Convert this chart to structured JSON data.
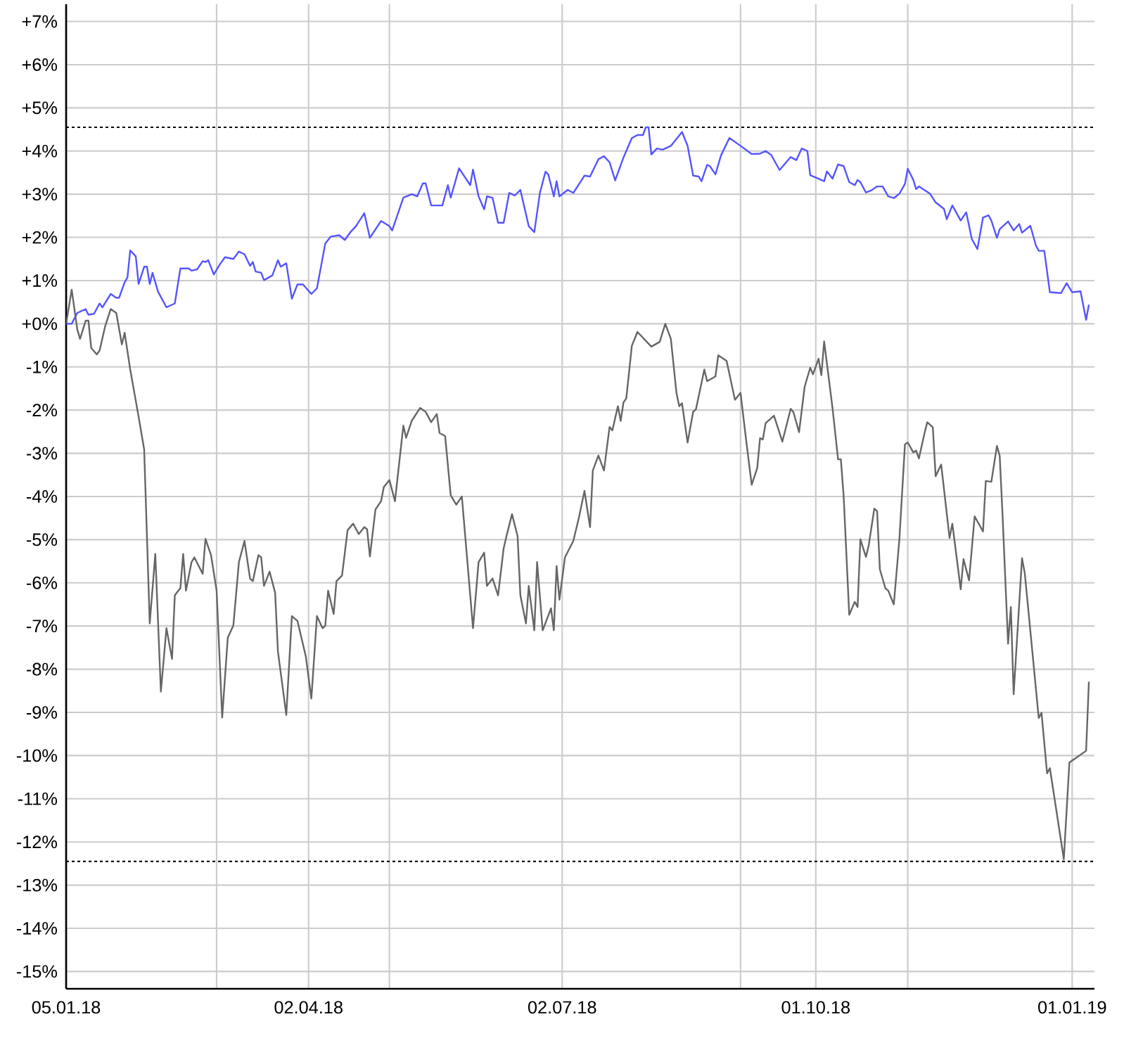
{
  "chart_data": {
    "type": "line",
    "xlim": [
      "2018-01-05",
      "2019-01-09"
    ],
    "xticks": [
      {
        "value": "2018-01-05",
        "label": "05.01.18"
      },
      {
        "value": "2018-02-28",
        "label": null
      },
      {
        "value": "2018-04-02",
        "label": "02.04.18"
      },
      {
        "value": "2018-05-01",
        "label": null
      },
      {
        "value": "2018-07-02",
        "label": "02.07.18"
      },
      {
        "value": "2018-09-04",
        "label": null
      },
      {
        "value": "2018-10-01",
        "label": "01.10.18"
      },
      {
        "value": "2018-11-03",
        "label": null
      },
      {
        "value": "2019-01-01",
        "label": "01.01.19"
      }
    ],
    "ylim": [
      -15.4,
      7.4
    ],
    "yticks": [
      {
        "value": 7,
        "label": "+7%"
      },
      {
        "value": 6,
        "label": "+6%"
      },
      {
        "value": 5,
        "label": "+5%"
      },
      {
        "value": 4,
        "label": "+4%"
      },
      {
        "value": 3,
        "label": "+3%"
      },
      {
        "value": 2,
        "label": "+2%"
      },
      {
        "value": 1,
        "label": "+1%"
      },
      {
        "value": 0,
        "label": "+0%"
      },
      {
        "value": -1,
        "label": "-1%"
      },
      {
        "value": -2,
        "label": "-2%"
      },
      {
        "value": -3,
        "label": "-3%"
      },
      {
        "value": -4,
        "label": "-4%"
      },
      {
        "value": -5,
        "label": "-5%"
      },
      {
        "value": -6,
        "label": "-6%"
      },
      {
        "value": -7,
        "label": "-7%"
      },
      {
        "value": -8,
        "label": "-8%"
      },
      {
        "value": -9,
        "label": "-9%"
      },
      {
        "value": -10,
        "label": "-10%"
      },
      {
        "value": -11,
        "label": "-11%"
      },
      {
        "value": -12,
        "label": "-12%"
      },
      {
        "value": -13,
        "label": "-13%"
      },
      {
        "value": -14,
        "label": "-14%"
      },
      {
        "value": -15,
        "label": "-15%"
      }
    ],
    "grid": true,
    "ref_lines": [
      {
        "axis": "y",
        "value": 4.55,
        "color": "#000000",
        "line_style": "dotted"
      },
      {
        "axis": "y",
        "value": -12.45,
        "color": "#000000",
        "line_style": "dotted"
      }
    ],
    "series": [
      {
        "color": "#5555ff",
        "x": [
          "2018-01-05",
          "2018-01-07",
          "2018-01-09",
          "2018-01-12",
          "2018-01-13",
          "2018-01-15",
          "2018-01-17",
          "2018-01-18",
          "2018-01-21",
          "2018-01-23",
          "2018-01-24",
          "2018-01-26",
          "2018-01-27",
          "2018-01-28",
          "2018-01-30",
          "2018-01-31",
          "2018-02-02",
          "2018-02-03",
          "2018-02-04",
          "2018-02-05",
          "2018-02-07",
          "2018-02-10",
          "2018-02-13",
          "2018-02-15",
          "2018-02-18",
          "2018-02-19",
          "2018-02-21",
          "2018-02-23",
          "2018-02-24",
          "2018-02-25",
          "2018-02-27",
          "2018-03-01",
          "2018-03-03",
          "2018-03-06",
          "2018-03-08",
          "2018-03-10",
          "2018-03-12",
          "2018-03-13",
          "2018-03-14",
          "2018-03-16",
          "2018-03-17",
          "2018-03-20",
          "2018-03-22",
          "2018-03-23",
          "2018-03-25",
          "2018-03-27",
          "2018-03-29",
          "2018-03-31",
          "2018-04-03",
          "2018-04-05",
          "2018-04-08",
          "2018-04-10",
          "2018-04-13",
          "2018-04-15",
          "2018-04-17",
          "2018-04-19",
          "2018-04-22",
          "2018-04-24",
          "2018-04-28",
          "2018-05-01",
          "2018-05-02",
          "2018-05-04",
          "2018-05-06",
          "2018-05-09",
          "2018-05-11",
          "2018-05-13",
          "2018-05-14",
          "2018-05-16",
          "2018-05-19",
          "2018-05-20",
          "2018-05-22",
          "2018-05-23",
          "2018-05-26",
          "2018-05-30",
          "2018-05-31",
          "2018-06-02",
          "2018-06-04",
          "2018-06-05",
          "2018-06-07",
          "2018-06-09",
          "2018-06-11",
          "2018-06-13",
          "2018-06-15",
          "2018-06-17",
          "2018-06-20",
          "2018-06-22",
          "2018-06-24",
          "2018-06-26",
          "2018-06-27",
          "2018-06-29",
          "2018-06-30",
          "2018-07-01",
          "2018-07-04",
          "2018-07-06",
          "2018-07-10",
          "2018-07-12",
          "2018-07-15",
          "2018-07-17",
          "2018-07-19",
          "2018-07-21",
          "2018-07-24",
          "2018-07-27",
          "2018-07-29",
          "2018-07-31",
          "2018-08-01",
          "2018-08-02",
          "2018-08-03",
          "2018-08-05",
          "2018-08-07",
          "2018-08-10",
          "2018-08-14",
          "2018-08-16",
          "2018-08-18",
          "2018-08-20",
          "2018-08-21",
          "2018-08-23",
          "2018-08-24",
          "2018-08-26",
          "2018-08-28",
          "2018-08-31",
          "2018-09-04",
          "2018-09-08",
          "2018-09-11",
          "2018-09-13",
          "2018-09-15",
          "2018-09-18",
          "2018-09-22",
          "2018-09-24",
          "2018-09-26",
          "2018-09-28",
          "2018-09-29",
          "2018-10-02",
          "2018-10-04",
          "2018-10-05",
          "2018-10-07",
          "2018-10-09",
          "2018-10-11",
          "2018-10-13",
          "2018-10-15",
          "2018-10-16",
          "2018-10-17",
          "2018-10-19",
          "2018-10-21",
          "2018-10-23",
          "2018-10-25",
          "2018-10-27",
          "2018-10-29",
          "2018-10-31",
          "2018-11-02",
          "2018-11-03",
          "2018-11-05",
          "2018-11-06",
          "2018-11-07",
          "2018-11-11",
          "2018-11-13",
          "2018-11-16",
          "2018-11-17",
          "2018-11-19",
          "2018-11-22",
          "2018-11-24",
          "2018-11-26",
          "2018-11-28",
          "2018-11-30",
          "2018-12-02",
          "2018-12-03",
          "2018-12-05",
          "2018-12-06",
          "2018-12-09",
          "2018-12-11",
          "2018-12-13",
          "2018-12-14",
          "2018-12-17",
          "2018-12-19",
          "2018-12-20",
          "2018-12-22",
          "2018-12-24",
          "2018-12-28",
          "2018-12-30",
          "2019-01-01",
          "2019-01-04",
          "2019-01-06",
          "2019-01-07"
        ],
        "values": [
          0.0,
          0.0,
          0.25,
          0.34,
          0.21,
          0.23,
          0.47,
          0.38,
          0.69,
          0.6,
          0.6,
          0.96,
          1.07,
          1.7,
          1.56,
          0.92,
          1.32,
          1.32,
          0.92,
          1.18,
          0.74,
          0.38,
          0.47,
          1.28,
          1.28,
          1.23,
          1.26,
          1.45,
          1.43,
          1.47,
          1.14,
          1.36,
          1.54,
          1.5,
          1.67,
          1.61,
          1.34,
          1.43,
          1.21,
          1.18,
          1.01,
          1.12,
          1.47,
          1.32,
          1.4,
          0.58,
          0.91,
          0.91,
          0.69,
          0.82,
          1.86,
          2.02,
          2.05,
          1.94,
          2.12,
          2.26,
          2.56,
          1.99,
          2.38,
          2.26,
          2.16,
          2.54,
          2.92,
          3.0,
          2.95,
          3.25,
          3.25,
          2.74,
          2.74,
          2.74,
          3.21,
          2.92,
          3.6,
          3.21,
          3.57,
          2.95,
          2.65,
          2.95,
          2.92,
          2.34,
          2.34,
          3.03,
          2.97,
          3.1,
          2.26,
          2.12,
          3.03,
          3.52,
          3.46,
          2.95,
          3.3,
          2.95,
          3.1,
          3.03,
          3.43,
          3.41,
          3.81,
          3.88,
          3.74,
          3.32,
          3.85,
          4.3,
          4.37,
          4.37,
          4.55,
          4.55,
          3.92,
          4.06,
          4.03,
          4.12,
          4.44,
          4.12,
          3.43,
          3.41,
          3.3,
          3.68,
          3.65,
          3.46,
          3.9,
          4.3,
          4.12,
          3.93,
          3.94,
          4.0,
          3.91,
          3.56,
          3.86,
          3.79,
          4.06,
          4.0,
          3.44,
          3.36,
          3.3,
          3.53,
          3.36,
          3.69,
          3.65,
          3.28,
          3.21,
          3.33,
          3.28,
          3.04,
          3.09,
          3.18,
          3.18,
          2.95,
          2.91,
          3.01,
          3.24,
          3.59,
          3.33,
          3.12,
          3.18,
          3.01,
          2.81,
          2.66,
          2.42,
          2.74,
          2.39,
          2.58,
          1.96,
          1.73,
          2.46,
          2.51,
          2.39,
          1.99,
          2.19,
          2.37,
          2.16,
          2.31,
          2.11,
          2.27,
          1.81,
          1.69,
          1.69,
          0.73,
          0.71,
          0.94,
          0.73,
          0.75,
          0.09,
          0.44
        ]
      },
      {
        "color": "#666666",
        "x": [
          "2018-01-05",
          "2018-01-07",
          "2018-01-09",
          "2018-01-10",
          "2018-01-12",
          "2018-01-13",
          "2018-01-14",
          "2018-01-16",
          "2018-01-17",
          "2018-01-19",
          "2018-01-21",
          "2018-01-23",
          "2018-01-25",
          "2018-01-26",
          "2018-01-28",
          "2018-01-31",
          "2018-02-02",
          "2018-02-04",
          "2018-02-06",
          "2018-02-08",
          "2018-02-10",
          "2018-02-12",
          "2018-02-13",
          "2018-02-15",
          "2018-02-16",
          "2018-02-17",
          "2018-02-19",
          "2018-02-20",
          "2018-02-23",
          "2018-02-24",
          "2018-02-26",
          "2018-02-28",
          "2018-03-02",
          "2018-03-04",
          "2018-03-06",
          "2018-03-08",
          "2018-03-10",
          "2018-03-12",
          "2018-03-13",
          "2018-03-15",
          "2018-03-16",
          "2018-03-17",
          "2018-03-19",
          "2018-03-21",
          "2018-03-22",
          "2018-03-25",
          "2018-03-27",
          "2018-03-29",
          "2018-04-01",
          "2018-04-03",
          "2018-04-05",
          "2018-04-07",
          "2018-04-08",
          "2018-04-09",
          "2018-04-11",
          "2018-04-12",
          "2018-04-14",
          "2018-04-16",
          "2018-04-18",
          "2018-04-20",
          "2018-04-22",
          "2018-04-23",
          "2018-04-24",
          "2018-04-26",
          "2018-04-28",
          "2018-04-29",
          "2018-05-01",
          "2018-05-03",
          "2018-05-06",
          "2018-05-07",
          "2018-05-09",
          "2018-05-12",
          "2018-05-14",
          "2018-05-16",
          "2018-05-18",
          "2018-05-19",
          "2018-05-21",
          "2018-05-23",
          "2018-05-25",
          "2018-05-27",
          "2018-05-29",
          "2018-05-31",
          "2018-06-02",
          "2018-06-04",
          "2018-06-05",
          "2018-06-07",
          "2018-06-09",
          "2018-06-11",
          "2018-06-12",
          "2018-06-14",
          "2018-06-16",
          "2018-06-17",
          "2018-06-19",
          "2018-06-20",
          "2018-06-22",
          "2018-06-23",
          "2018-06-25",
          "2018-06-28",
          "2018-06-29",
          "2018-06-30",
          "2018-07-01",
          "2018-07-03",
          "2018-07-06",
          "2018-07-08",
          "2018-07-10",
          "2018-07-12",
          "2018-07-13",
          "2018-07-15",
          "2018-07-17",
          "2018-07-19",
          "2018-07-20",
          "2018-07-22",
          "2018-07-23",
          "2018-07-24",
          "2018-07-25",
          "2018-07-27",
          "2018-07-29",
          "2018-08-03",
          "2018-08-06",
          "2018-08-08",
          "2018-08-10",
          "2018-08-12",
          "2018-08-13",
          "2018-08-14",
          "2018-08-16",
          "2018-08-18",
          "2018-08-19",
          "2018-08-22",
          "2018-08-23",
          "2018-08-26",
          "2018-08-27",
          "2018-08-30",
          "2018-09-02",
          "2018-09-04",
          "2018-09-06",
          "2018-09-08",
          "2018-09-10",
          "2018-09-11",
          "2018-09-12",
          "2018-09-13",
          "2018-09-16",
          "2018-09-19",
          "2018-09-22",
          "2018-09-23",
          "2018-09-25",
          "2018-09-27",
          "2018-09-29",
          "2018-09-30",
          "2018-10-02",
          "2018-10-03",
          "2018-10-04",
          "2018-10-07",
          "2018-10-09",
          "2018-10-10",
          "2018-10-11",
          "2018-10-13",
          "2018-10-15",
          "2018-10-16",
          "2018-10-17",
          "2018-10-19",
          "2018-10-20",
          "2018-10-22",
          "2018-10-23",
          "2018-10-24",
          "2018-10-26",
          "2018-10-27",
          "2018-10-29",
          "2018-10-31",
          "2018-11-02",
          "2018-11-03",
          "2018-11-05",
          "2018-11-06",
          "2018-11-07",
          "2018-11-09",
          "2018-11-10",
          "2018-11-12",
          "2018-11-13",
          "2018-11-15",
          "2018-11-18",
          "2018-11-19",
          "2018-11-22",
          "2018-11-23",
          "2018-11-25",
          "2018-11-27",
          "2018-11-30",
          "2018-12-01",
          "2018-12-03",
          "2018-12-05",
          "2018-12-06",
          "2018-12-07",
          "2018-12-09",
          "2018-12-10",
          "2018-12-11",
          "2018-12-14",
          "2018-12-15",
          "2018-12-18",
          "2018-12-20",
          "2018-12-21",
          "2018-12-23",
          "2018-12-24",
          "2018-12-29",
          "2018-12-31",
          "2019-01-06",
          "2019-01-07"
        ],
        "values": [
          0.0,
          0.79,
          -0.13,
          -0.35,
          0.07,
          0.07,
          -0.56,
          -0.71,
          -0.62,
          -0.06,
          0.34,
          0.25,
          -0.48,
          -0.21,
          -1.06,
          -2.15,
          -2.91,
          -6.94,
          -5.33,
          -8.52,
          -7.05,
          -7.76,
          -6.29,
          -6.12,
          -5.33,
          -6.18,
          -5.52,
          -5.41,
          -5.79,
          -4.98,
          -5.36,
          -6.18,
          -9.12,
          -7.27,
          -6.99,
          -5.52,
          -5.03,
          -5.9,
          -5.96,
          -5.36,
          -5.41,
          -6.07,
          -5.74,
          -6.23,
          -7.59,
          -9.06,
          -6.77,
          -6.88,
          -7.7,
          -8.68,
          -6.77,
          -7.05,
          -6.99,
          -6.18,
          -6.72,
          -5.96,
          -5.83,
          -4.78,
          -4.63,
          -4.87,
          -4.71,
          -4.76,
          -5.39,
          -4.3,
          -4.11,
          -3.78,
          -3.62,
          -4.11,
          -2.36,
          -2.64,
          -2.25,
          -1.95,
          -2.04,
          -2.28,
          -2.09,
          -2.53,
          -2.6,
          -3.97,
          -4.19,
          -4.0,
          -5.52,
          -7.05,
          -5.52,
          -5.3,
          -6.07,
          -5.9,
          -6.29,
          -5.2,
          -4.92,
          -4.41,
          -4.92,
          -6.29,
          -6.94,
          -6.07,
          -7.1,
          -5.52,
          -7.1,
          -6.59,
          -7.1,
          -5.61,
          -6.39,
          -5.41,
          -5.03,
          -4.49,
          -3.87,
          -4.71,
          -3.4,
          -3.05,
          -3.4,
          -2.39,
          -2.47,
          -1.91,
          -2.25,
          -1.82,
          -1.73,
          -0.51,
          -0.19,
          -0.53,
          -0.42,
          0.0,
          -0.35,
          -1.6,
          -1.91,
          -1.84,
          -2.75,
          -2.04,
          -1.98,
          -1.06,
          -1.33,
          -1.22,
          -0.73,
          -0.86,
          -1.76,
          -1.6,
          -2.69,
          -3.73,
          -3.34,
          -2.65,
          -2.68,
          -2.3,
          -2.13,
          -2.73,
          -1.97,
          -2.05,
          -2.51,
          -1.46,
          -1.02,
          -1.17,
          -0.81,
          -1.19,
          -0.41,
          -1.95,
          -3.14,
          -3.14,
          -3.99,
          -6.74,
          -6.44,
          -6.56,
          -4.99,
          -5.4,
          -5.13,
          -4.28,
          -4.34,
          -5.69,
          -6.13,
          -6.18,
          -6.5,
          -4.99,
          -2.79,
          -2.75,
          -2.98,
          -2.94,
          -3.12,
          -2.54,
          -2.28,
          -2.4,
          -3.53,
          -3.26,
          -4.96,
          -4.63,
          -6.15,
          -5.45,
          -5.94,
          -4.46,
          -4.81,
          -3.64,
          -3.66,
          -2.83,
          -3.06,
          -4.4,
          -7.41,
          -6.56,
          -8.58,
          -5.43,
          -5.78,
          -7.79,
          -9.13,
          -9.01,
          -10.41,
          -10.29,
          -12.4,
          -10.16,
          -9.89,
          -8.29
        ]
      }
    ]
  }
}
